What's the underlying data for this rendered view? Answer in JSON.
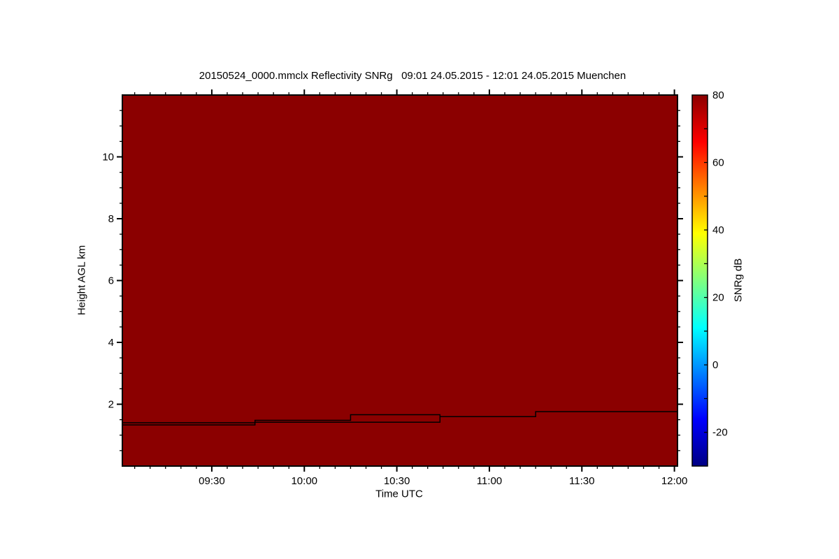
{
  "chart_data": {
    "type": "heatmap",
    "title": "20150524_0000.mmclx Reflectivity SNRg   09:01 24.05.2015 - 12:01 24.05.2015 Muenchen",
    "xlabel": "Time UTC",
    "ylabel": "Height AGL km",
    "colorbar_label": "SNRg dB",
    "site": "Muenchen",
    "file": "20150524_0000.mmclx",
    "time_start": "09:01 24.05.2015",
    "time_end": "12:01 24.05.2015",
    "x_axis": {
      "range_min": [
        0,
        180
      ],
      "start_label": "09:01",
      "end_label": "12:01",
      "major_ticks": [
        {
          "label": "09:30",
          "t": 29
        },
        {
          "label": "10:00",
          "t": 59
        },
        {
          "label": "10:30",
          "t": 89
        },
        {
          "label": "11:00",
          "t": 119
        },
        {
          "label": "11:30",
          "t": 149
        },
        {
          "label": "12:00",
          "t": 179
        }
      ],
      "minor_interval_min": 5,
      "grid": false
    },
    "y_axis": {
      "range_km": [
        0,
        12
      ],
      "major_ticks": [
        2,
        4,
        6,
        8,
        10
      ],
      "minor_interval_km": 0.5,
      "grid": false
    },
    "colorbar": {
      "min": -30,
      "max": 80,
      "major_ticks": [
        80,
        60,
        40,
        20,
        0,
        -20
      ],
      "minor_interval": 10,
      "gradient_stops": [
        {
          "v": 80,
          "color": "#8B0000"
        },
        {
          "v": 66,
          "color": "#FF0000"
        },
        {
          "v": 39,
          "color": "#FFFF00"
        },
        {
          "v": 11,
          "color": "#00FFFF"
        },
        {
          "v": -16,
          "color": "#0000FF"
        },
        {
          "v": -30,
          "color": "#000083"
        }
      ]
    },
    "field": {
      "description": "uniform saturated field at top of scale",
      "value_db": 80,
      "fill_color": "#8B0000"
    },
    "line_color": "#000000",
    "lines": [
      {
        "name": "upper-step-line",
        "points_t_km": [
          [
            0,
            1.4
          ],
          [
            43,
            1.4
          ],
          [
            43,
            1.48
          ],
          [
            74,
            1.48
          ],
          [
            74,
            1.66
          ],
          [
            103,
            1.66
          ],
          [
            103,
            1.6
          ],
          [
            134,
            1.6
          ],
          [
            134,
            1.76
          ],
          [
            180,
            1.76
          ]
        ]
      },
      {
        "name": "lower-step-line",
        "points_t_km": [
          [
            0,
            1.33
          ],
          [
            43,
            1.33
          ],
          [
            43,
            1.42
          ],
          [
            103,
            1.42
          ],
          [
            103,
            1.6
          ]
        ]
      }
    ]
  }
}
